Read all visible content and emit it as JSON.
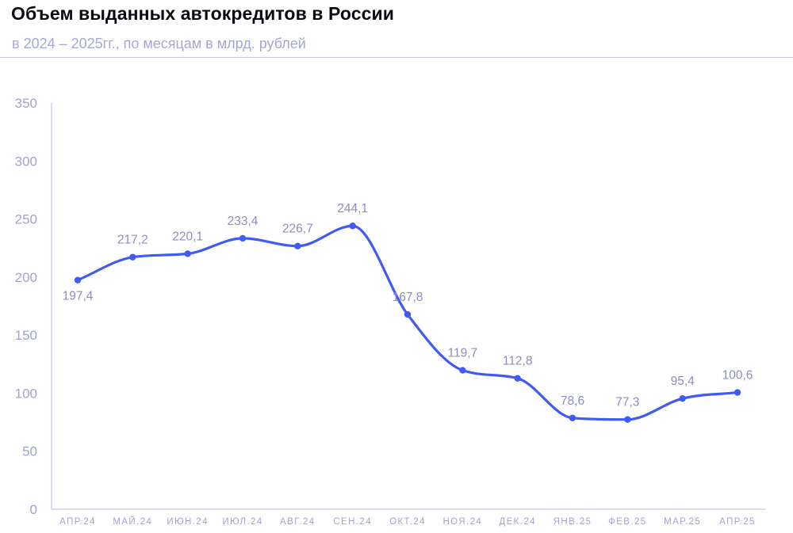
{
  "header": {
    "title": "Объем выданных автокредитов в России",
    "subtitle": "в 2024 – 2025гг., по месяцам в млрд. рублей"
  },
  "colors": {
    "line": "#3f5af5",
    "axis": "#c9c8e6",
    "text": "#a3a2d4",
    "title": "#0b0b12"
  },
  "chart_data": {
    "type": "line",
    "title": "Объем выданных автокредитов в России",
    "subtitle": "в 2024 – 2025гг., по месяцам в млрд. рублей",
    "xlabel": "",
    "ylabel": "",
    "categories": [
      "АПР.24",
      "МАЙ.24",
      "ИЮН.24",
      "ИЮЛ.24",
      "АВГ.24",
      "СЕН.24",
      "ОКТ.24",
      "НОЯ.24",
      "ДЕК.24",
      "ЯНВ.25",
      "ФЕВ.25",
      "МАР.25",
      "АПР.25"
    ],
    "values": [
      197.4,
      217.2,
      220.1,
      233.4,
      226.7,
      244.1,
      167.8,
      119.7,
      112.8,
      78.6,
      77.3,
      95.4,
      100.6
    ],
    "data_labels": [
      "197,4",
      "217,2",
      "220,1",
      "233,4",
      "226,7",
      "244,1",
      "167,8",
      "119,7",
      "112,8",
      "78,6",
      "77,3",
      "95,4",
      "100,6"
    ],
    "label_position": [
      "below",
      "above",
      "above",
      "above",
      "above",
      "above",
      "above",
      "above",
      "above",
      "above",
      "above",
      "above",
      "above"
    ],
    "ylim": [
      0,
      350
    ],
    "yticks": [
      0,
      50,
      100,
      150,
      200,
      250,
      300,
      350
    ],
    "grid": false,
    "smooth": true,
    "legend": "none"
  }
}
